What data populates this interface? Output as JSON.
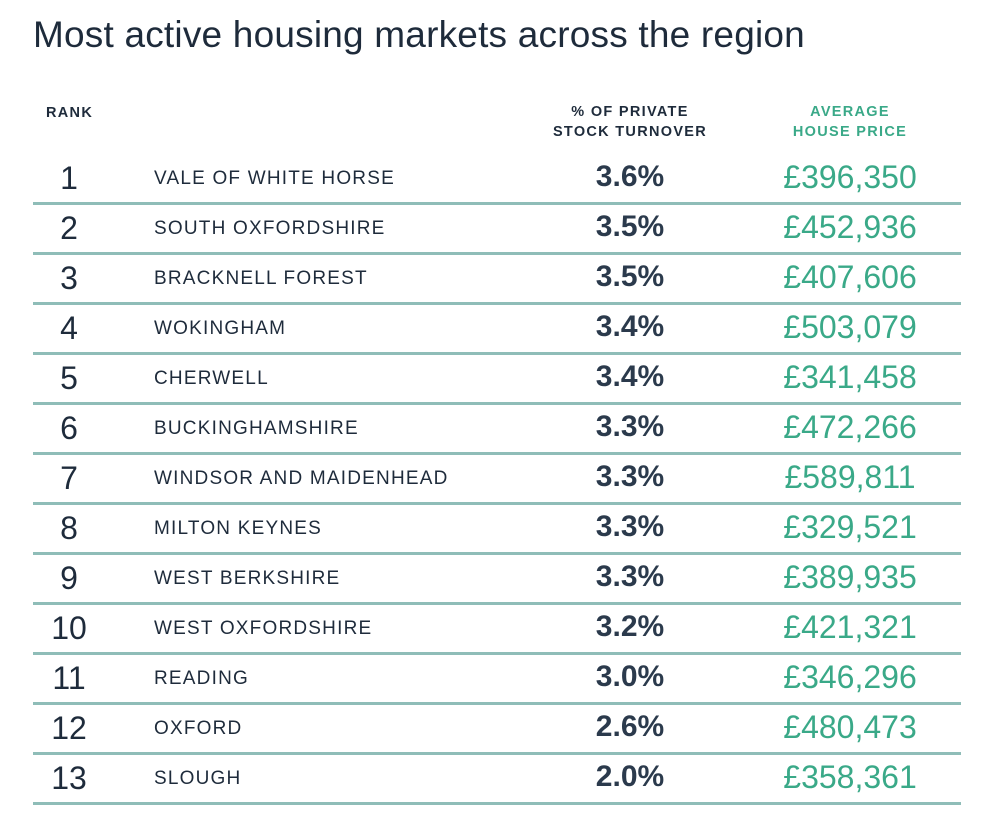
{
  "title": "Most active housing markets across the region",
  "headers": {
    "rank": "RANK",
    "turnover_line1": "% OF PRIVATE",
    "turnover_line2": "STOCK TURNOVER",
    "price_line1": "AVERAGE",
    "price_line2": "HOUSE PRICE"
  },
  "rows": [
    {
      "rank": "1",
      "name": "VALE OF WHITE HORSE",
      "turnover": "3.6%",
      "price": "£396,350"
    },
    {
      "rank": "2",
      "name": "SOUTH OXFORDSHIRE",
      "turnover": "3.5%",
      "price": "£452,936"
    },
    {
      "rank": "3",
      "name": "BRACKNELL FOREST",
      "turnover": "3.5%",
      "price": "£407,606"
    },
    {
      "rank": "4",
      "name": "WOKINGHAM",
      "turnover": "3.4%",
      "price": "£503,079"
    },
    {
      "rank": "5",
      "name": "CHERWELL",
      "turnover": "3.4%",
      "price": "£341,458"
    },
    {
      "rank": "6",
      "name": "BUCKINGHAMSHIRE",
      "turnover": "3.3%",
      "price": "£472,266"
    },
    {
      "rank": "7",
      "name": "WINDSOR AND MAIDENHEAD",
      "turnover": "3.3%",
      "price": "£589,811"
    },
    {
      "rank": "8",
      "name": "MILTON KEYNES",
      "turnover": "3.3%",
      "price": "£329,521"
    },
    {
      "rank": "9",
      "name": "WEST BERKSHIRE",
      "turnover": "3.3%",
      "price": "£389,935"
    },
    {
      "rank": "10",
      "name": "WEST OXFORDSHIRE",
      "turnover": "3.2%",
      "price": "£421,321"
    },
    {
      "rank": "11",
      "name": "READING",
      "turnover": "3.0%",
      "price": "£346,296"
    },
    {
      "rank": "12",
      "name": "OXFORD",
      "turnover": "2.6%",
      "price": "£480,473"
    },
    {
      "rank": "13",
      "name": "SLOUGH",
      "turnover": "2.0%",
      "price": "£358,361"
    }
  ],
  "colors": {
    "text": "#1e2b3b",
    "accent": "#3aa988",
    "divider": "#8fbdb8"
  }
}
